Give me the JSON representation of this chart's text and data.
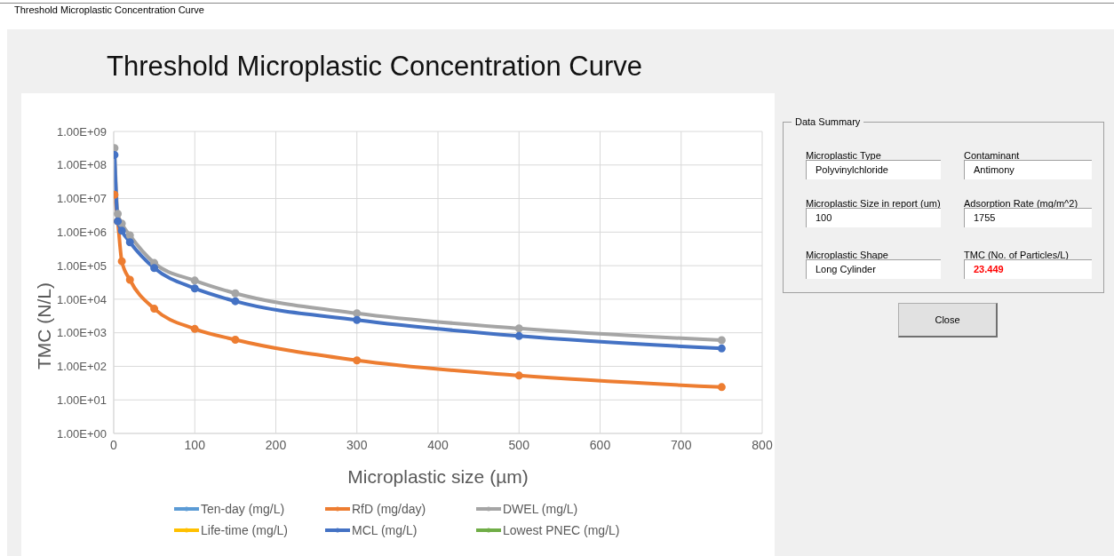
{
  "chart_data": [
    {
      "type": "line",
      "title": "Threshold Microplastic Concentration Curve",
      "annotations": [
        "Threshold Microplastic Concentration Curve"
      ],
      "xlabel": "Microplastic size (µm)",
      "ylabel": "TMC (N/L)",
      "x": [
        1,
        5,
        10,
        20,
        50,
        100,
        150,
        300,
        500,
        750
      ],
      "series": [
        {
          "name": "Ten-day (mg/L)",
          "color": "#5b9bd5",
          "values": [
            null,
            null,
            null,
            null,
            null,
            null,
            null,
            null,
            null,
            null
          ]
        },
        {
          "name": "RfD (mg/day)",
          "color": "#ed7d31",
          "values": [
            13000000,
            2100000,
            135000,
            38000,
            5200,
            1300,
            620,
            150,
            53,
            24
          ]
        },
        {
          "name": "DWEL (mg/L)",
          "color": "#a5a5a5",
          "values": [
            320000000,
            3500000,
            1800000,
            800000,
            120000,
            36000,
            15000,
            3800,
            1350,
            600
          ]
        },
        {
          "name": "Life-time (mg/L)",
          "color": "#ffc000",
          "values": [
            null,
            null,
            null,
            null,
            null,
            null,
            null,
            null,
            null,
            null
          ]
        },
        {
          "name": "MCL (mg/L)",
          "color": "#4472c4",
          "values": [
            200000000,
            2100000,
            1100000,
            500000,
            85000,
            21000,
            8700,
            2400,
            800,
            340
          ]
        },
        {
          "name": "Lowest PNEC (mg/L)",
          "color": "#70ad47",
          "values": [
            null,
            null,
            null,
            null,
            null,
            null,
            null,
            null,
            null,
            null
          ]
        }
      ],
      "xlim": [
        0,
        800
      ],
      "xticks": [
        0,
        100,
        200,
        300,
        400,
        500,
        600,
        700,
        800
      ],
      "ylim": [
        1,
        1000000000
      ],
      "yticks": [
        {
          "value": 1,
          "label": "1.00E+00"
        },
        {
          "value": 10,
          "label": "1.00E+01"
        },
        {
          "value": 100,
          "label": "1.00E+02"
        },
        {
          "value": 1000,
          "label": "1.00E+03"
        },
        {
          "value": 10000,
          "label": "1.00E+04"
        },
        {
          "value": 100000,
          "label": "1.00E+05"
        },
        {
          "value": 1000000,
          "label": "1.00E+06"
        },
        {
          "value": 10000000,
          "label": "1.00E+07"
        },
        {
          "value": 100000000,
          "label": "1.00E+08"
        },
        {
          "value": 1000000000,
          "label": "1.00E+09"
        }
      ],
      "log": "y",
      "grid": true,
      "legend": "bottom",
      "marker": "circle",
      "line_style": "solid"
    },
    {
      "type": "other",
      "title": "Data Summary",
      "annotations": [
        "Microplastic Type",
        "Polyvinylchloride",
        "Contaminant",
        "Antimony",
        "Microplastic Size in report (um)",
        "100",
        "Adsorption Rate (mg/m^2)",
        "1755",
        "Microplastic Shape",
        "Long Cylinder",
        "TMC (No. of Particles/L)",
        "23.449",
        "Close"
      ]
    }
  ]
}
